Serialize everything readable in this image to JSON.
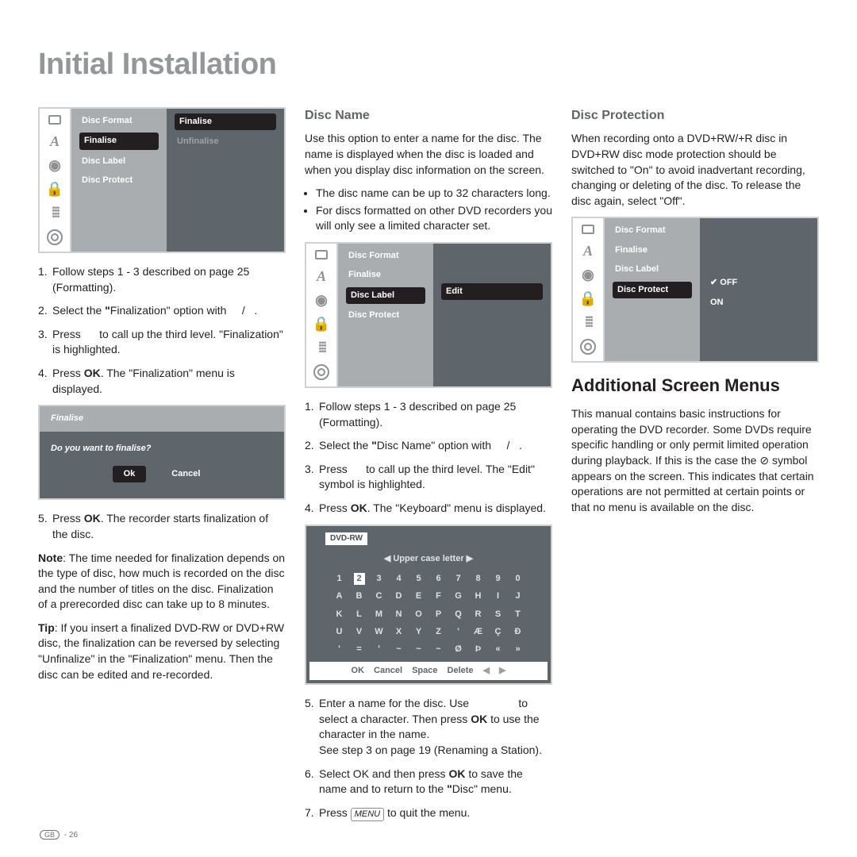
{
  "title": "Initial Installation",
  "footer": {
    "region": "GB",
    "page": "- 26"
  },
  "col1": {
    "osd": {
      "mid": [
        "Disc Format",
        "Finalise",
        "Disc Label",
        "Disc Protect"
      ],
      "midHi": 1,
      "right": [
        "Finalise",
        "Unfinalise"
      ],
      "rightHi": 0
    },
    "steps": [
      "Follow steps 1 - 3 described on page 25 (Formatting).",
      "Select the \"Finalization\" option with      /    .",
      "Press       to call up the third level. \"Finalization\" is highlighted.",
      "Press OK. The \"Finalization\" menu is displayed."
    ],
    "confirm": {
      "title": "Finalise",
      "question": "Do you want to finalise?",
      "ok": "Ok",
      "cancel": "Cancel"
    },
    "step5": "Press OK. The recorder starts finalization of the disc.",
    "note_label": "Note",
    "note": ": The time needed for finalization depends on the type of disc, how much is recorded on the disc and the number of titles on the disc. Finalization of a prerecorded disc can take up to 8 minutes.",
    "tip_label": "Tip",
    "tip": ": If you insert a finalized DVD-RW or DVD+RW disc, the finalization can be reversed by selecting \"Unfinalize\" in the \"Finalization\" menu. Then the disc can be edited and re-recorded."
  },
  "col2": {
    "h": "Disc Name",
    "intro": "Use this option to enter a name for the disc. The name is displayed when the disc is loaded and when you display disc information on the screen.",
    "bullets": [
      "The disc name can be up to 32 characters long.",
      "For discs formatted on other DVD recorders you will only see a limited character set."
    ],
    "osd": {
      "mid": [
        "Disc Format",
        "Finalise",
        "Disc Label",
        "Disc Protect"
      ],
      "midHi": 2,
      "right": [
        "Edit"
      ],
      "rightHi": 0
    },
    "steps": [
      "Follow steps 1 - 3 described on page 25 (Formatting).",
      "Select the \"Disc Name\" option with      /    .",
      "Press       to call up the third level. The \"Edit\" symbol is highlighted.",
      "Press OK. The \"Keyboard\" menu is displayed."
    ],
    "kbd": {
      "title": "DVD-RW",
      "header": "Upper case letter",
      "rows": [
        [
          "1",
          "2",
          "3",
          "4",
          "5",
          "6",
          "7",
          "8",
          "9",
          "0"
        ],
        [
          "A",
          "B",
          "C",
          "D",
          "E",
          "F",
          "G",
          "H",
          "I",
          "J"
        ],
        [
          "K",
          "L",
          "M",
          "N",
          "O",
          "P",
          "Q",
          "R",
          "S",
          "T"
        ],
        [
          "U",
          "V",
          "W",
          "X",
          "Y",
          "Z",
          "'",
          "Æ",
          "Ç",
          "Ð"
        ],
        [
          "'",
          "=",
          "'",
          "~",
          "~",
          "~",
          "Ø",
          "Þ",
          "«",
          "»"
        ]
      ],
      "selected": [
        0,
        1
      ],
      "bottom": [
        "OK",
        "Cancel",
        "Space",
        "Delete",
        "◀",
        "▶"
      ]
    },
    "steps2": [
      "Enter a name for the disc. Use                  to select a character. Then press OK to use the character in the name.\nSee step 3 on page 19 (Renaming a Station).",
      "Select OK and then press OK to save the name and to return to the \"Disc\" menu.",
      "Press MENU to quit the menu."
    ]
  },
  "col3": {
    "h": "Disc Protection",
    "intro": "When recording onto a DVD+RW/+R disc in DVD+RW disc mode protection should be switched to \"On\" to avoid inadvertant recording, changing or deleting of the disc. To release the disc again, select \"Off\".",
    "osd": {
      "mid": [
        "Disc Format",
        "Finalise",
        "Disc Label",
        "Disc Protect"
      ],
      "midHi": 3,
      "right": [
        "OFF",
        "ON"
      ],
      "rightCheck": 0
    },
    "h2": "Additional Screen Menus",
    "para": "This manual contains basic instructions for operating the DVD recorder. Some DVDs require specific handling or only permit limited operation during playback. If this is the case the ⊘ symbol appears on the screen. This indicates that certain operations are not permitted at certain points or that no menu is available on the disc."
  }
}
